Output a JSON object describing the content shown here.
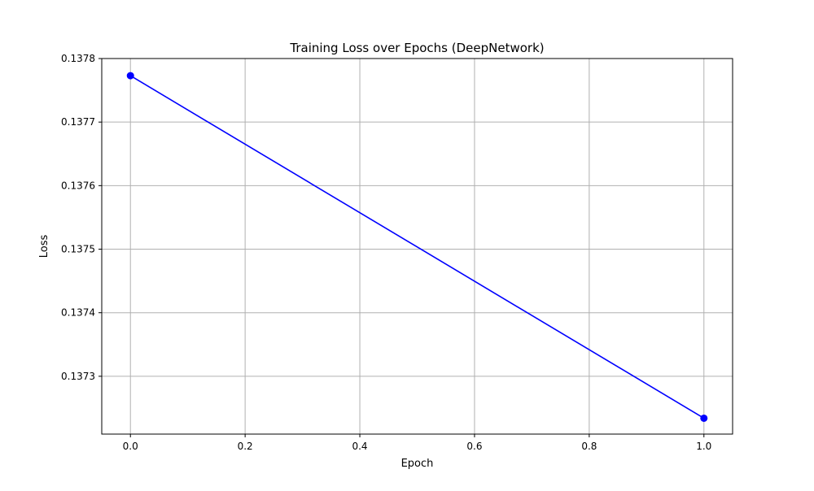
{
  "chart_data": {
    "type": "line",
    "title": "Training Loss over Epochs (DeepNetwork)",
    "xlabel": "Epoch",
    "ylabel": "Loss",
    "x": [
      0.0,
      1.0
    ],
    "series": [
      {
        "values": [
          0.137773,
          0.137234
        ],
        "color": "#0000ff",
        "marker": "circle"
      }
    ],
    "xlim": [
      -0.05,
      1.05
    ],
    "ylim": [
      0.137209,
      0.1378
    ],
    "x_ticks": [
      0.0,
      0.2,
      0.4,
      0.6,
      0.8,
      1.0
    ],
    "x_tick_labels": [
      "0.0",
      "0.2",
      "0.4",
      "0.6",
      "0.8",
      "1.0"
    ],
    "y_ticks": [
      0.1373,
      0.1374,
      0.1375,
      0.1376,
      0.1377,
      0.1378
    ],
    "y_tick_labels": [
      "0.1373",
      "0.1374",
      "0.1375",
      "0.1376",
      "0.1377",
      "0.1378"
    ],
    "grid": true,
    "grid_color": "#b0b0b0",
    "legend": "none"
  }
}
